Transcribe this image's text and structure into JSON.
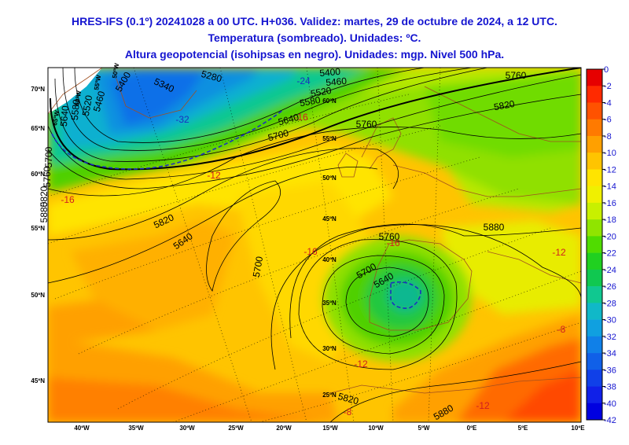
{
  "titles": {
    "line1": "HRES-IFS (0.1º) 20241028 a 00 UTC. H+036. Validez: martes, 29 de octubre de 2024, a 12 UTC.",
    "line2": "Temperatura (sombreado). Unidades: ºC.",
    "line3": "Altura geopotencial (isohipsas en negro). Unidades: mgp. Nivel 500 hPa."
  },
  "lat_labels": [
    "70ºN",
    "65ºN",
    "60ºN",
    "55ºN",
    "50ºN",
    "45ºN"
  ],
  "lon_labels": [
    "40ºW",
    "35ºW",
    "30ºW",
    "25ºW",
    "20ºW",
    "15ºW",
    "10ºW",
    "5ºW",
    "0ºE",
    "5ºE",
    "10ºE"
  ],
  "inner_lat_labels": [
    "60ºN",
    "55ºN",
    "50ºN",
    "45ºN",
    "40ºN",
    "35ºN",
    "30ºN",
    "25ºN"
  ],
  "inner_lon_labels": [
    "65ºW",
    "60ºW",
    "55ºW",
    "50ºW"
  ],
  "legend": {
    "ticks": [
      "0",
      "-2",
      "-4",
      "-6",
      "-8",
      "-10",
      "-12",
      "-14",
      "-16",
      "-18",
      "-20",
      "-22",
      "-24",
      "-26",
      "-28",
      "-30",
      "-32",
      "-34",
      "-36",
      "-38",
      "-40",
      "-42"
    ],
    "colors": [
      "#e60000",
      "#ff2a00",
      "#ff5200",
      "#ff7a00",
      "#ffa000",
      "#ffc400",
      "#ffe400",
      "#f0f000",
      "#c8f000",
      "#90e400",
      "#50dc00",
      "#20d020",
      "#10c850",
      "#10c890",
      "#10b8c8",
      "#10a0e0",
      "#1080e8",
      "#1060e8",
      "#1040e8",
      "#1020e8",
      "#0000e0"
    ]
  },
  "contour_labels": [
    "5280",
    "5340",
    "5400",
    "5460",
    "5520",
    "5580",
    "5640",
    "5700",
    "5760",
    "5820",
    "5880",
    "5400",
    "5460",
    "5520",
    "5580",
    "5640",
    "5700",
    "5760",
    "5820",
    "5640",
    "5700",
    "5760",
    "5820",
    "5880",
    "5640",
    "5700",
    "5760",
    "5820"
  ],
  "temp_labels": [
    "-24",
    "-32",
    "-16",
    "-16",
    "-12",
    "-16",
    "-12",
    "-12",
    "-8",
    "-8",
    "-16",
    "-12"
  ]
}
